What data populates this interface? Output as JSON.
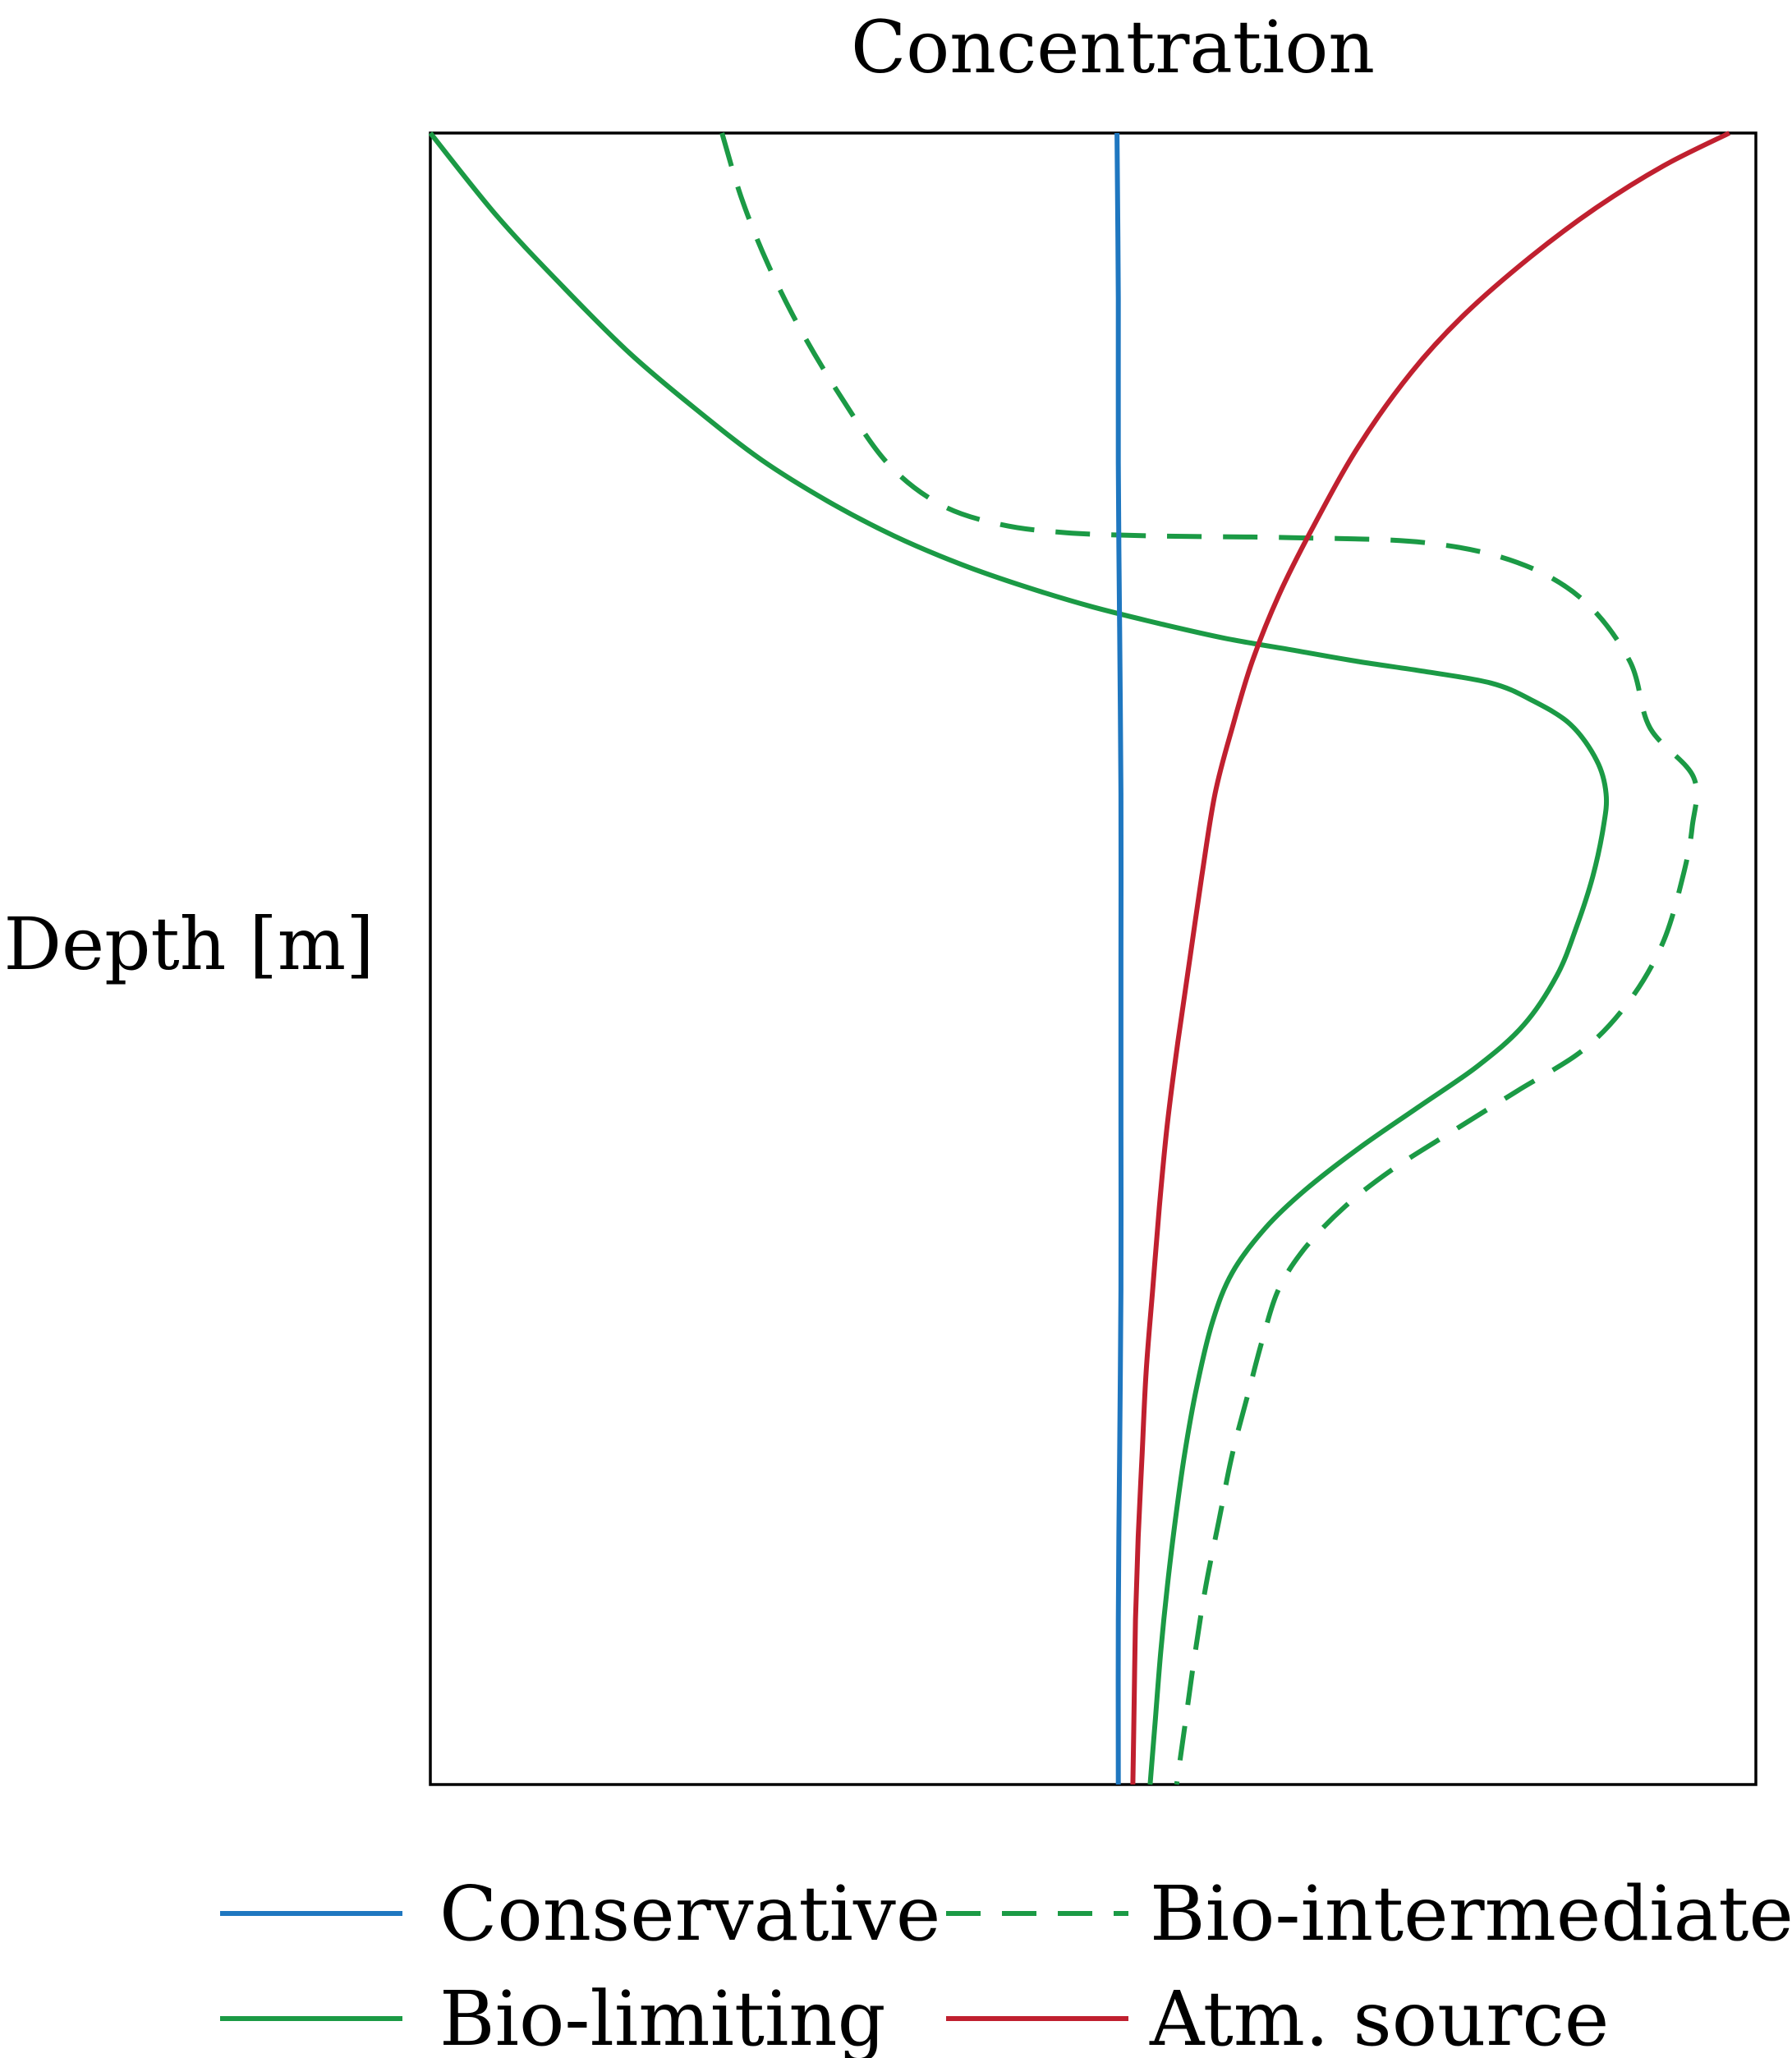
{
  "chart_data": {
    "type": "line",
    "title": "",
    "xlabel": "Concentration",
    "ylabel": "Depth [m]",
    "xaxis_position": "top",
    "yaxis_inverted": true,
    "grid": false,
    "ticks_shown": false,
    "xlim": [
      0,
      1
    ],
    "ylim": [
      0,
      1
    ],
    "legend_position": "bottom",
    "series": [
      {
        "name": "Conservative",
        "color": "#1f77c0",
        "dash": "solid",
        "points": [
          [
            0.518,
            0.0
          ],
          [
            0.519,
            0.1
          ],
          [
            0.519,
            0.2
          ],
          [
            0.52,
            0.3
          ],
          [
            0.521,
            0.4
          ],
          [
            0.521,
            0.5
          ],
          [
            0.521,
            0.6
          ],
          [
            0.521,
            0.7
          ],
          [
            0.52,
            0.8
          ],
          [
            0.519,
            0.9
          ],
          [
            0.519,
            1.0
          ]
        ]
      },
      {
        "name": "Bio-limiting",
        "color": "#1b9a45",
        "dash": "solid",
        "points": [
          [
            0.0,
            0.0
          ],
          [
            0.05,
            0.05
          ],
          [
            0.1,
            0.093
          ],
          [
            0.15,
            0.133
          ],
          [
            0.2,
            0.167
          ],
          [
            0.25,
            0.198
          ],
          [
            0.3,
            0.223
          ],
          [
            0.35,
            0.244
          ],
          [
            0.4,
            0.261
          ],
          [
            0.45,
            0.275
          ],
          [
            0.5,
            0.287
          ],
          [
            0.55,
            0.297
          ],
          [
            0.6,
            0.306
          ],
          [
            0.65,
            0.313
          ],
          [
            0.7,
            0.32
          ],
          [
            0.75,
            0.326
          ],
          [
            0.8,
            0.333
          ],
          [
            0.83,
            0.343
          ],
          [
            0.86,
            0.358
          ],
          [
            0.88,
            0.38
          ],
          [
            0.887,
            0.4
          ],
          [
            0.885,
            0.42
          ],
          [
            0.877,
            0.45
          ],
          [
            0.865,
            0.48
          ],
          [
            0.85,
            0.51
          ],
          [
            0.825,
            0.54
          ],
          [
            0.79,
            0.565
          ],
          [
            0.745,
            0.59
          ],
          [
            0.7,
            0.615
          ],
          [
            0.66,
            0.64
          ],
          [
            0.63,
            0.663
          ],
          [
            0.605,
            0.69
          ],
          [
            0.59,
            0.72
          ],
          [
            0.578,
            0.76
          ],
          [
            0.569,
            0.8
          ],
          [
            0.562,
            0.84
          ],
          [
            0.556,
            0.88
          ],
          [
            0.551,
            0.92
          ],
          [
            0.547,
            0.96
          ],
          [
            0.543,
            1.0
          ]
        ]
      },
      {
        "name": "Bio-intermediate",
        "color": "#1b9a45",
        "dash": "dashed",
        "points": [
          [
            0.22,
            0.0
          ],
          [
            0.235,
            0.04
          ],
          [
            0.255,
            0.08
          ],
          [
            0.28,
            0.12
          ],
          [
            0.31,
            0.16
          ],
          [
            0.345,
            0.2
          ],
          [
            0.385,
            0.225
          ],
          [
            0.43,
            0.237
          ],
          [
            0.48,
            0.242
          ],
          [
            0.55,
            0.244
          ],
          [
            0.65,
            0.245
          ],
          [
            0.75,
            0.248
          ],
          [
            0.82,
            0.26
          ],
          [
            0.87,
            0.283
          ],
          [
            0.905,
            0.32
          ],
          [
            0.92,
            0.36
          ],
          [
            0.953,
            0.39
          ],
          [
            0.952,
            0.42
          ],
          [
            0.945,
            0.45
          ],
          [
            0.93,
            0.49
          ],
          [
            0.905,
            0.525
          ],
          [
            0.87,
            0.555
          ],
          [
            0.82,
            0.58
          ],
          [
            0.77,
            0.605
          ],
          [
            0.725,
            0.628
          ],
          [
            0.69,
            0.65
          ],
          [
            0.66,
            0.675
          ],
          [
            0.64,
            0.7
          ],
          [
            0.628,
            0.73
          ],
          [
            0.618,
            0.76
          ],
          [
            0.605,
            0.8
          ],
          [
            0.595,
            0.84
          ],
          [
            0.585,
            0.88
          ],
          [
            0.577,
            0.92
          ],
          [
            0.57,
            0.96
          ],
          [
            0.563,
            1.0
          ]
        ]
      },
      {
        "name": "Atm. source",
        "color": "#c0202f",
        "dash": "solid",
        "points": [
          [
            0.98,
            0.0
          ],
          [
            0.93,
            0.02
          ],
          [
            0.88,
            0.045
          ],
          [
            0.83,
            0.075
          ],
          [
            0.78,
            0.11
          ],
          [
            0.74,
            0.145
          ],
          [
            0.7,
            0.19
          ],
          [
            0.665,
            0.24
          ],
          [
            0.64,
            0.28
          ],
          [
            0.62,
            0.32
          ],
          [
            0.605,
            0.36
          ],
          [
            0.592,
            0.4
          ],
          [
            0.582,
            0.45
          ],
          [
            0.573,
            0.5
          ],
          [
            0.564,
            0.55
          ],
          [
            0.556,
            0.6
          ],
          [
            0.55,
            0.65
          ],
          [
            0.545,
            0.7
          ],
          [
            0.54,
            0.75
          ],
          [
            0.537,
            0.8
          ],
          [
            0.534,
            0.85
          ],
          [
            0.532,
            0.9
          ],
          [
            0.531,
            0.95
          ],
          [
            0.53,
            1.0
          ]
        ]
      }
    ],
    "legend": [
      {
        "label": "Conservative",
        "series": 0
      },
      {
        "label": "Bio-intermediate",
        "series": 2
      },
      {
        "label": "Bio-limiting",
        "series": 1
      },
      {
        "label": "Atm. source",
        "series": 3
      }
    ]
  }
}
